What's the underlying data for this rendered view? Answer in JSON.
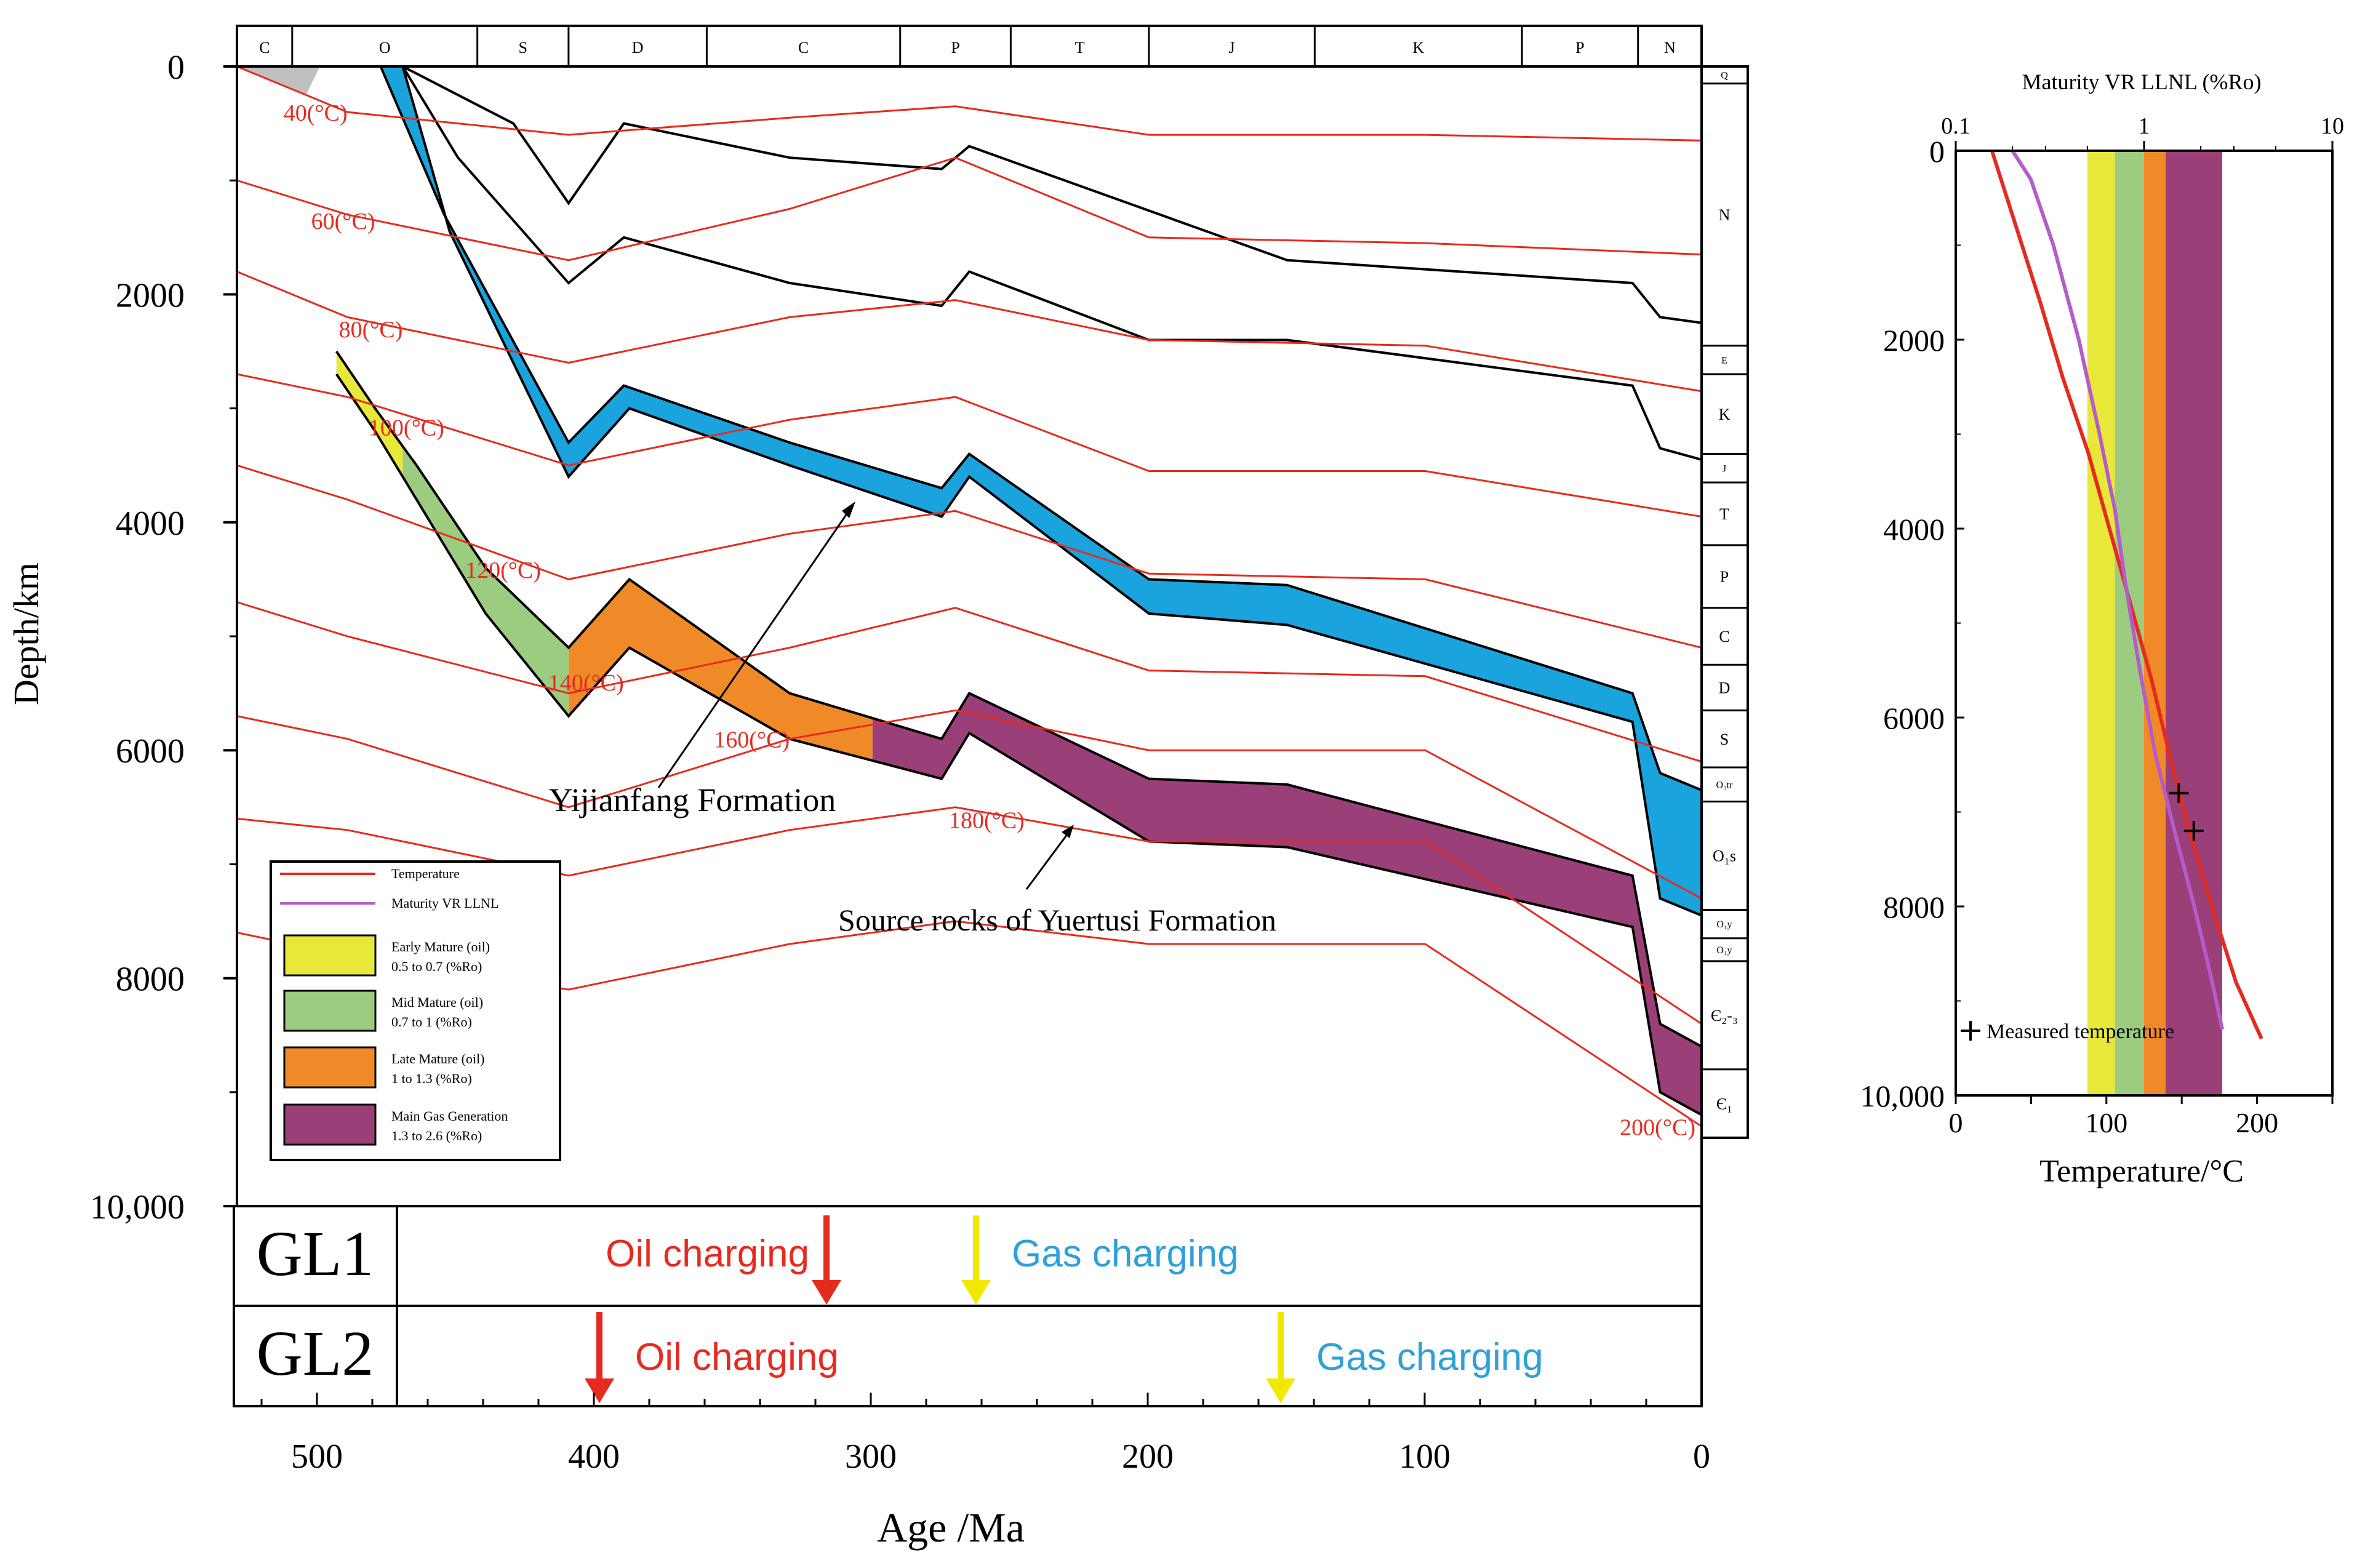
{
  "chart_data": [
    {
      "type": "burial_history",
      "title": "",
      "xlabel": "Age /Ma",
      "ylabel": "Depth/km",
      "xlim": [
        530,
        0
      ],
      "ylim": [
        0,
        10000
      ],
      "x_ticks": [
        500,
        400,
        300,
        200,
        100,
        0
      ],
      "x_tick_labels": [
        "500",
        "400",
        "300",
        "200",
        "100",
        "0"
      ],
      "y_ticks": [
        0,
        2000,
        4000,
        6000,
        8000,
        10000
      ],
      "y_tick_labels": [
        "0",
        "2000",
        "4000",
        "6000",
        "8000",
        "10,000"
      ],
      "periods": [
        {
          "label": "C",
          "start": 530,
          "end": 510
        },
        {
          "label": "O",
          "start": 510,
          "end": 443
        },
        {
          "label": "S",
          "start": 443,
          "end": 410
        },
        {
          "label": "D",
          "start": 410,
          "end": 360
        },
        {
          "label": "C",
          "start": 360,
          "end": 290
        },
        {
          "label": "P",
          "start": 290,
          "end": 250
        },
        {
          "label": "T",
          "start": 250,
          "end": 200
        },
        {
          "label": "J",
          "start": 200,
          "end": 140
        },
        {
          "label": "K",
          "start": 140,
          "end": 65
        },
        {
          "label": "P",
          "start": 65,
          "end": 23
        },
        {
          "label": "N",
          "start": 23,
          "end": 0
        }
      ],
      "strata_labels": [
        {
          "label": "Q",
          "top": 0,
          "bottom": 150
        },
        {
          "label": "N",
          "top": 150,
          "bottom": 2450
        },
        {
          "label": "E",
          "top": 2450,
          "bottom": 2700
        },
        {
          "label": "K",
          "top": 2700,
          "bottom": 3400
        },
        {
          "label": "J",
          "top": 3400,
          "bottom": 3650
        },
        {
          "label": "T",
          "top": 3650,
          "bottom": 4200
        },
        {
          "label": "P",
          "top": 4200,
          "bottom": 4750
        },
        {
          "label": "C",
          "top": 4750,
          "bottom": 5250
        },
        {
          "label": "D",
          "top": 5250,
          "bottom": 5650
        },
        {
          "label": "S",
          "top": 5650,
          "bottom": 6150
        },
        {
          "label": "O₃tr",
          "top": 6150,
          "bottom": 6450
        },
        {
          "label": "O₁s",
          "top": 6450,
          "bottom": 7400
        },
        {
          "label": "O₁y",
          "top": 7400,
          "bottom": 7650
        },
        {
          "label": "O₁y",
          "top": 7650,
          "bottom": 7850
        },
        {
          "label": "Є₂-₃",
          "top": 7850,
          "bottom": 8800
        },
        {
          "label": "Є₁",
          "top": 8800,
          "bottom": 9400
        }
      ],
      "surface_age": [
        530,
        512,
        500,
        494,
        478,
        470
      ],
      "horizons": [
        {
          "x": [
            490,
            470,
            430,
            410,
            390,
            330,
            275,
            265,
            150,
            25,
            15,
            0
          ],
          "y": [
            0,
            0,
            500,
            1200,
            500,
            800,
            900,
            700,
            1700,
            1900,
            2200,
            2250
          ]
        },
        {
          "x": [
            470,
            450,
            410,
            390,
            330,
            275,
            265,
            200,
            150,
            25,
            15,
            0
          ],
          "y": [
            0,
            800,
            1900,
            1500,
            1900,
            2100,
            1800,
            2400,
            2400,
            2800,
            3350,
            3450
          ]
        },
        {
          "x": [
            478,
            455,
            410,
            390,
            330,
            275,
            265,
            200,
            150,
            25,
            15,
            0
          ],
          "y": [
            0,
            1300,
            3300,
            2800,
            3300,
            3700,
            3400,
            4500,
            4550,
            5500,
            6200,
            6350
          ]
        },
        {
          "x": [
            470,
            453,
            410,
            388,
            330,
            275,
            265,
            200,
            150,
            25,
            15,
            0
          ],
          "y": [
            0,
            1450,
            3600,
            3000,
            3500,
            3950,
            3600,
            4800,
            4900,
            5750,
            7300,
            7450
          ]
        },
        {
          "x": [
            494,
            480,
            465,
            440,
            410,
            388,
            330,
            275,
            265,
            200,
            150,
            25,
            15,
            0
          ],
          "y": [
            2500,
            3000,
            3500,
            4400,
            5100,
            4500,
            5500,
            5900,
            5500,
            6250,
            6300,
            7100,
            8400,
            8600
          ]
        },
        {
          "x": [
            494,
            480,
            465,
            440,
            410,
            388,
            330,
            275,
            265,
            200,
            150,
            25,
            15,
            0
          ],
          "y": [
            2700,
            3200,
            3800,
            4800,
            5700,
            5100,
            5900,
            6250,
            5850,
            6800,
            6850,
            7550,
            9000,
            9200
          ]
        }
      ],
      "maturity_zones": [
        {
          "name": "Early Mature (oil)",
          "range": "0.5 to 0.7 (%Ro)",
          "color": "#e8e83a"
        },
        {
          "name": "Mid Mature (oil)",
          "range": "0.7 to 1 (%Ro)",
          "color": "#9ccc80"
        },
        {
          "name": "Late Mature (oil)",
          "range": "1 to 1.3 (%Ro)",
          "color": "#f08a28"
        },
        {
          "name": "Main Gas Generation",
          "range": "1.3 to 2.6 (%Ro)",
          "color": "#9a3f78"
        }
      ],
      "isotherms": [
        {
          "label": "40(°C)",
          "x": [
            530,
            490,
            410,
            330,
            270,
            200,
            100,
            0
          ],
          "y": [
            0,
            400,
            600,
            450,
            350,
            600,
            600,
            650
          ]
        },
        {
          "label": "60(°C)",
          "x": [
            530,
            490,
            410,
            330,
            270,
            200,
            100,
            0
          ],
          "y": [
            1000,
            1300,
            1700,
            1250,
            800,
            1500,
            1550,
            1650
          ]
        },
        {
          "label": "80(°C)",
          "x": [
            530,
            490,
            410,
            330,
            270,
            200,
            100,
            0
          ],
          "y": [
            1800,
            2200,
            2600,
            2200,
            2050,
            2400,
            2450,
            2850
          ]
        },
        {
          "label": "100(°C)",
          "x": [
            530,
            490,
            410,
            330,
            270,
            200,
            100,
            0
          ],
          "y": [
            2700,
            2900,
            3500,
            3100,
            2900,
            3550,
            3550,
            3950
          ]
        },
        {
          "label": "120(°C)",
          "x": [
            530,
            490,
            410,
            330,
            270,
            200,
            100,
            0
          ],
          "y": [
            3500,
            3800,
            4500,
            4100,
            3900,
            4450,
            4500,
            5100
          ]
        },
        {
          "label": "140(°C)",
          "x": [
            530,
            490,
            410,
            330,
            270,
            200,
            100,
            0
          ],
          "y": [
            4700,
            5000,
            5500,
            5100,
            4750,
            5300,
            5350,
            6100
          ]
        },
        {
          "label": "160(°C)",
          "x": [
            530,
            490,
            410,
            330,
            270,
            200,
            100,
            0
          ],
          "y": [
            5700,
            5900,
            6500,
            5900,
            5650,
            6000,
            6000,
            7300
          ]
        },
        {
          "label": "180(°C)",
          "x": [
            530,
            490,
            410,
            330,
            270,
            200,
            100,
            0
          ],
          "y": [
            6600,
            6700,
            7100,
            6700,
            6500,
            6800,
            6800,
            8400
          ]
        },
        {
          "label": "200(°C)",
          "x": [
            530,
            490,
            410,
            330,
            270,
            200,
            100,
            0
          ],
          "y": [
            7600,
            7800,
            8100,
            7700,
            7500,
            7700,
            7700,
            9300
          ]
        }
      ],
      "legend": [
        {
          "label": "Temperature",
          "color": "#e52b20"
        },
        {
          "label": "Maturity VR LLNL",
          "color": "#b45cc8"
        }
      ],
      "annotations": [
        "Yijianfang Formation",
        "Source rocks of Yuertusi Formation"
      ]
    },
    {
      "type": "line",
      "title": "Maturity VR LLNL (%Ro)",
      "xlabel": "Temperature/°C",
      "ylabel": "",
      "xlim": [
        0,
        250
      ],
      "ylim": [
        0,
        10000
      ],
      "x_ticks": [
        0,
        100,
        200
      ],
      "x_tick_labels": [
        "0",
        "100",
        "200"
      ],
      "top_axis_ticks": [
        0.1,
        1,
        10
      ],
      "top_axis_labels": [
        "0.1",
        "1",
        "10"
      ],
      "y_ticks": [
        0,
        2000,
        4000,
        6000,
        8000,
        10000
      ],
      "y_tick_labels": [
        "0",
        "2000",
        "4000",
        "6000",
        "8000",
        "10,000"
      ],
      "maturity_bands_ro": [
        {
          "from": 0.5,
          "to": 0.7,
          "color": "#e8e83a"
        },
        {
          "from": 0.7,
          "to": 1.0,
          "color": "#9ccc80"
        },
        {
          "from": 1.0,
          "to": 1.3,
          "color": "#f08a28"
        },
        {
          "from": 1.3,
          "to": 2.6,
          "color": "#9a3f78"
        }
      ],
      "series": [
        {
          "name": "Temperature",
          "x": [
            24,
            40,
            56,
            71,
            88,
            102,
            116,
            130,
            142,
            155,
            170,
            186,
            203
          ],
          "y": [
            0,
            800,
            1600,
            2400,
            3200,
            4000,
            4800,
            5600,
            6400,
            7200,
            8000,
            8800,
            9400
          ],
          "color": "#e52b20"
        },
        {
          "name": "Maturity VR LLNL",
          "ro": [
            0.2,
            0.25,
            0.33,
            0.45,
            0.58,
            0.7,
            0.8,
            0.95,
            1.15,
            1.45,
            1.85,
            2.3,
            2.6
          ],
          "y": [
            0,
            300,
            1000,
            2000,
            3000,
            3800,
            4600,
            5500,
            6400,
            7200,
            8000,
            8800,
            9300
          ],
          "color": "#b45cc8"
        }
      ],
      "measured_points": [
        {
          "temperature": 148,
          "depth": 6800
        },
        {
          "temperature": 158,
          "depth": 7200
        }
      ],
      "measured_label": "Measured temperature"
    }
  ],
  "charging_events": {
    "rows": [
      {
        "label": "GL1",
        "oil_age": 316,
        "gas_age": 262,
        "oil_label": "Oil charging",
        "gas_label": "Gas charging"
      },
      {
        "label": "GL2",
        "oil_age": 398,
        "gas_age": 152,
        "oil_label": "Oil charging",
        "gas_label": "Gas charging"
      }
    ],
    "oil_color": "#e52b20",
    "gas_arrow_color": "#f2e800",
    "gas_text_color": "#2fa0d8"
  },
  "colors": {
    "yijianfang": "#1aa3dc",
    "isotherm": "#e52b20",
    "horizon": "#000000",
    "initial_surface": "#c0c0c0"
  }
}
